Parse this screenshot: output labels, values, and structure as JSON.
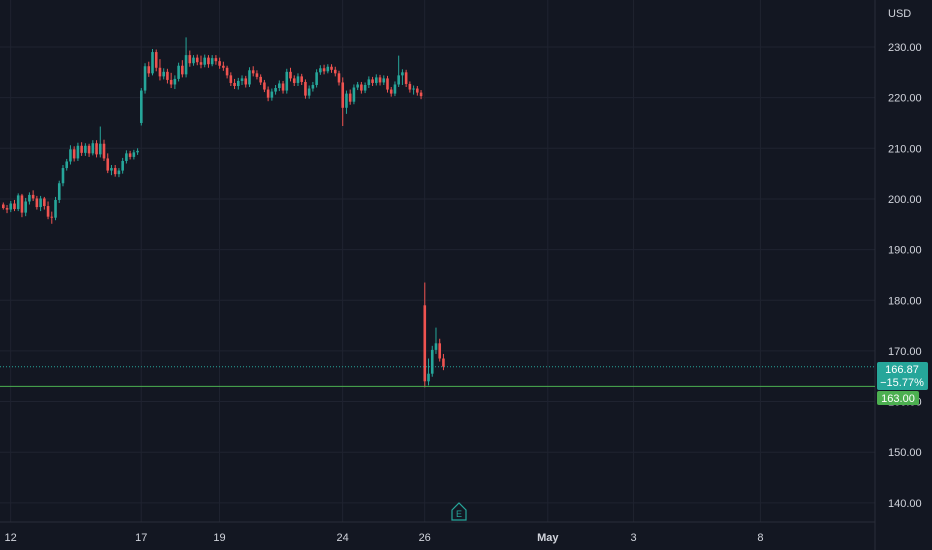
{
  "currency": "USD",
  "earnings_marker": "E",
  "colors": {
    "background": "#131722",
    "grid": "#1f2330",
    "up": "#26a69a",
    "down": "#ef5350",
    "alert_line": "#4caf50",
    "text": "#d1d4dc"
  },
  "price_tag": {
    "price": "166.87",
    "change": "−15.77%",
    "color": "#26a69a"
  },
  "alert_tag": {
    "price": "163.00",
    "color": "#4caf50"
  },
  "chart_data": {
    "type": "candlestick",
    "ylim": [
      136,
      238
    ],
    "y_ticks": [
      140,
      150,
      160,
      170,
      180,
      190,
      200,
      210,
      220,
      230
    ],
    "x_ticks": [
      {
        "label": "12",
        "index": 2
      },
      {
        "label": "17",
        "index": 37
      },
      {
        "label": "19",
        "index": 58
      },
      {
        "label": "24",
        "index": 91
      },
      {
        "label": "26",
        "index": 113
      },
      {
        "label": "May",
        "index": 146
      },
      {
        "label": "3",
        "index": 169
      },
      {
        "label": "8",
        "index": 203
      }
    ],
    "x_count": 232,
    "last_price": 166.87,
    "alert_level": 163.0,
    "grid": true,
    "candles": [
      [
        0,
        198.9,
        199.3,
        197.9,
        198.2
      ],
      [
        1,
        198.2,
        198.8,
        197.2,
        197.9
      ],
      [
        2,
        197.9,
        199.6,
        197.4,
        199.1
      ],
      [
        3,
        199.1,
        199.8,
        197.6,
        198.0
      ],
      [
        4,
        198.0,
        201.1,
        197.6,
        200.7
      ],
      [
        5,
        200.7,
        201.0,
        196.4,
        197.3
      ],
      [
        6,
        197.3,
        200.2,
        196.6,
        199.5
      ],
      [
        7,
        199.5,
        201.3,
        198.9,
        200.8
      ],
      [
        8,
        200.8,
        201.7,
        199.6,
        200.1
      ],
      [
        9,
        200.1,
        200.6,
        197.9,
        198.4
      ],
      [
        10,
        198.4,
        200.6,
        197.6,
        200.1
      ],
      [
        11,
        200.1,
        200.4,
        197.9,
        198.6
      ],
      [
        12,
        198.6,
        199.5,
        196.0,
        196.5
      ],
      [
        13,
        196.5,
        197.5,
        195.1,
        196.3
      ],
      [
        14,
        196.3,
        200.4,
        195.8,
        199.8
      ],
      [
        15,
        199.8,
        203.6,
        199.2,
        203.1
      ],
      [
        16,
        203.1,
        206.7,
        202.5,
        206.1
      ],
      [
        17,
        206.1,
        207.9,
        205.6,
        207.4
      ],
      [
        18,
        207.4,
        210.6,
        206.8,
        209.8
      ],
      [
        19,
        209.8,
        210.4,
        207.4,
        208.0
      ],
      [
        20,
        208.0,
        211.1,
        207.5,
        210.5
      ],
      [
        21,
        210.5,
        211.2,
        208.5,
        209.1
      ],
      [
        22,
        209.1,
        211.0,
        208.5,
        210.5
      ],
      [
        23,
        210.5,
        210.9,
        208.3,
        209.0
      ],
      [
        24,
        209.0,
        211.6,
        208.6,
        211.0
      ],
      [
        25,
        211.0,
        211.6,
        208.2,
        208.8
      ],
      [
        26,
        208.8,
        214.3,
        208.2,
        210.9
      ],
      [
        27,
        210.9,
        211.7,
        207.5,
        208.0
      ],
      [
        28,
        208.0,
        209.0,
        205.1,
        205.6
      ],
      [
        29,
        205.6,
        206.7,
        204.7,
        206.1
      ],
      [
        30,
        206.1,
        206.7,
        204.4,
        204.9
      ],
      [
        31,
        204.9,
        206.1,
        204.3,
        205.6
      ],
      [
        32,
        205.6,
        208.1,
        205.0,
        207.5
      ],
      [
        33,
        207.5,
        209.6,
        207.0,
        209.0
      ],
      [
        34,
        209.0,
        209.5,
        207.8,
        208.3
      ],
      [
        35,
        208.3,
        209.7,
        207.8,
        209.2
      ],
      [
        36,
        209.2,
        210.0,
        208.7,
        209.5
      ],
      [
        37,
        215.0,
        221.9,
        214.5,
        221.4
      ],
      [
        38,
        221.4,
        226.8,
        220.8,
        226.2
      ],
      [
        39,
        226.2,
        227.1,
        224.1,
        224.8
      ],
      [
        40,
        224.8,
        229.6,
        224.4,
        229.0
      ],
      [
        41,
        229.0,
        229.5,
        225.2,
        225.9
      ],
      [
        42,
        225.9,
        227.6,
        223.4,
        224.2
      ],
      [
        43,
        224.2,
        225.8,
        223.6,
        225.1
      ],
      [
        44,
        225.1,
        225.7,
        222.8,
        223.5
      ],
      [
        45,
        223.5,
        224.9,
        221.9,
        222.6
      ],
      [
        46,
        222.6,
        224.4,
        221.7,
        223.7
      ],
      [
        47,
        223.7,
        226.9,
        223.2,
        226.3
      ],
      [
        48,
        226.3,
        227.4,
        224.0,
        224.6
      ],
      [
        49,
        224.6,
        231.9,
        224.0,
        228.4
      ],
      [
        50,
        228.4,
        229.3,
        226.1,
        226.8
      ],
      [
        51,
        226.8,
        228.4,
        226.3,
        227.9
      ],
      [
        52,
        227.9,
        228.5,
        226.4,
        227.0
      ],
      [
        53,
        227.0,
        228.3,
        225.8,
        226.5
      ],
      [
        54,
        226.5,
        228.5,
        226.0,
        227.9
      ],
      [
        55,
        227.9,
        228.4,
        225.9,
        226.6
      ],
      [
        56,
        226.6,
        228.4,
        226.2,
        227.8
      ],
      [
        57,
        227.8,
        228.4,
        226.5,
        227.2
      ],
      [
        58,
        227.2,
        227.9,
        225.7,
        226.3
      ],
      [
        59,
        226.3,
        227.1,
        225.3,
        225.9
      ],
      [
        60,
        225.9,
        226.3,
        223.8,
        224.4
      ],
      [
        61,
        224.4,
        225.0,
        222.3,
        222.9
      ],
      [
        62,
        222.9,
        223.7,
        221.7,
        222.3
      ],
      [
        63,
        222.3,
        223.9,
        221.6,
        223.3
      ],
      [
        64,
        223.3,
        224.4,
        222.5,
        223.8
      ],
      [
        65,
        223.8,
        224.3,
        222.0,
        222.6
      ],
      [
        66,
        222.6,
        226.0,
        222.1,
        225.4
      ],
      [
        67,
        225.4,
        226.2,
        224.2,
        224.8
      ],
      [
        68,
        224.8,
        225.4,
        223.6,
        224.1
      ],
      [
        69,
        224.1,
        224.6,
        222.5,
        223.0
      ],
      [
        70,
        223.0,
        223.5,
        221.1,
        221.6
      ],
      [
        71,
        221.6,
        222.2,
        219.3,
        220.0
      ],
      [
        72,
        220.0,
        221.8,
        219.4,
        221.2
      ],
      [
        73,
        221.2,
        222.5,
        220.6,
        221.9
      ],
      [
        74,
        221.9,
        223.4,
        221.3,
        222.8
      ],
      [
        75,
        222.8,
        223.3,
        220.8,
        221.4
      ],
      [
        76,
        221.4,
        225.7,
        220.8,
        225.1
      ],
      [
        77,
        225.1,
        225.9,
        223.2,
        223.8
      ],
      [
        78,
        223.8,
        224.4,
        222.3,
        222.9
      ],
      [
        79,
        222.9,
        224.8,
        222.3,
        224.2
      ],
      [
        80,
        224.2,
        224.7,
        222.5,
        223.1
      ],
      [
        81,
        223.1,
        223.6,
        219.8,
        220.4
      ],
      [
        82,
        220.4,
        222.4,
        219.8,
        221.8
      ],
      [
        83,
        221.8,
        223.1,
        221.2,
        222.5
      ],
      [
        84,
        222.5,
        225.6,
        222.0,
        225.0
      ],
      [
        85,
        225.0,
        226.4,
        224.5,
        225.8
      ],
      [
        86,
        225.8,
        226.5,
        224.6,
        225.2
      ],
      [
        87,
        225.2,
        226.6,
        224.8,
        226.1
      ],
      [
        88,
        226.1,
        226.6,
        224.9,
        225.5
      ],
      [
        89,
        225.5,
        226.1,
        224.2,
        224.8
      ],
      [
        90,
        224.8,
        225.3,
        222.4,
        223.0
      ],
      [
        91,
        223.0,
        224.0,
        214.4,
        218.0
      ],
      [
        92,
        218.0,
        221.4,
        216.8,
        220.8
      ],
      [
        93,
        220.8,
        221.6,
        218.6,
        219.2
      ],
      [
        94,
        219.2,
        222.6,
        218.7,
        222.0
      ],
      [
        95,
        222.0,
        223.1,
        221.5,
        222.6
      ],
      [
        96,
        222.6,
        223.1,
        220.8,
        221.4
      ],
      [
        97,
        221.4,
        223.0,
        220.9,
        222.5
      ],
      [
        98,
        222.5,
        224.2,
        221.9,
        223.6
      ],
      [
        99,
        223.6,
        224.1,
        222.3,
        222.9
      ],
      [
        100,
        222.9,
        224.6,
        222.4,
        224.0
      ],
      [
        101,
        224.0,
        224.5,
        222.4,
        223.0
      ],
      [
        102,
        223.0,
        224.4,
        222.5,
        223.8
      ],
      [
        103,
        223.8,
        224.3,
        221.0,
        221.6
      ],
      [
        104,
        221.6,
        222.1,
        220.2,
        220.8
      ],
      [
        105,
        220.8,
        223.2,
        220.3,
        222.6
      ],
      [
        106,
        222.6,
        228.3,
        222.1,
        224.4
      ],
      [
        107,
        224.4,
        225.6,
        222.5,
        225.0
      ],
      [
        108,
        225.0,
        225.5,
        222.1,
        222.7
      ],
      [
        109,
        222.7,
        223.2,
        221.0,
        221.6
      ],
      [
        110,
        221.6,
        222.4,
        220.6,
        221.8
      ],
      [
        111,
        221.8,
        222.3,
        220.4,
        221.0
      ],
      [
        112,
        221.0,
        221.5,
        219.7,
        220.3
      ],
      [
        113,
        179.0,
        183.5,
        162.8,
        164.0
      ],
      [
        114,
        164.0,
        168.5,
        163.2,
        165.5
      ],
      [
        115,
        165.5,
        171.0,
        164.9,
        170.2
      ],
      [
        116,
        170.2,
        174.6,
        169.4,
        171.5
      ],
      [
        117,
        171.5,
        172.4,
        167.9,
        168.5
      ],
      [
        118,
        168.5,
        169.4,
        166.2,
        166.9
      ]
    ]
  }
}
